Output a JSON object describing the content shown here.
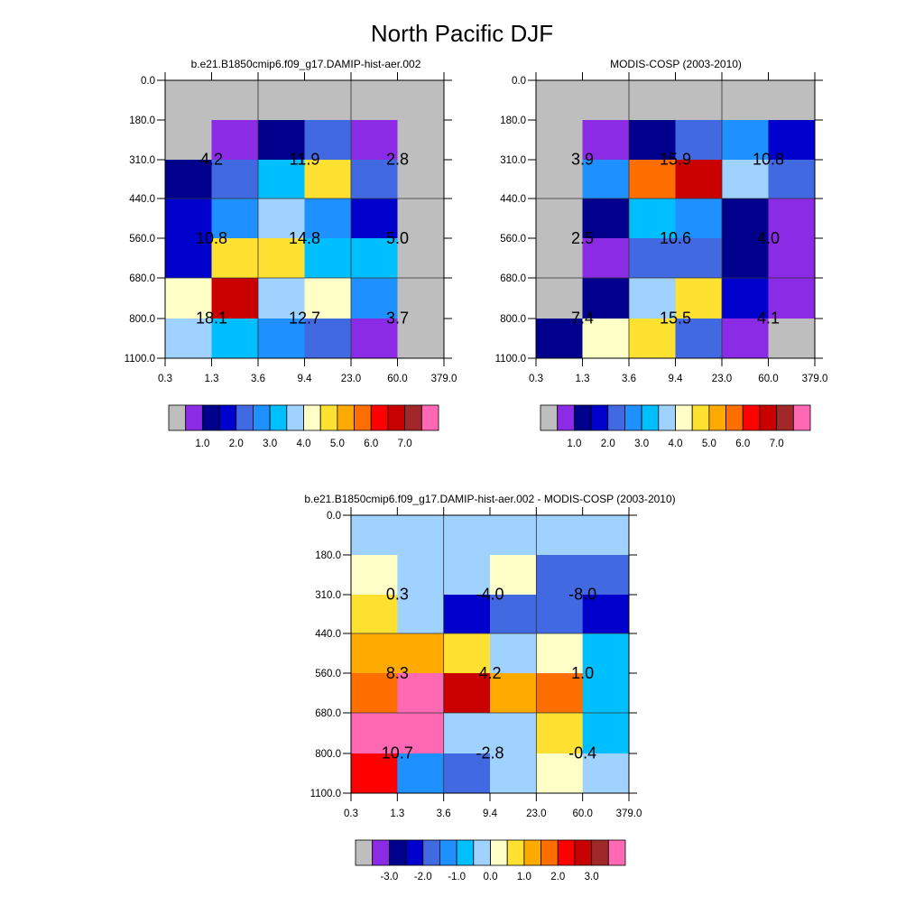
{
  "title": "North Pacific DJF",
  "palette": {
    "bg": "#ffffff",
    "missing": "#bebebe",
    "cells": [
      "#8c2be6",
      "#00008c",
      "#0000cd",
      "#4169e1",
      "#1e90ff",
      "#00bfff",
      "#a0d2ff",
      "#ffffc8",
      "#ffe132",
      "#ffaa00",
      "#ff6e00",
      "#ff0000",
      "#c80000",
      "#a02828",
      "#ff69b4"
    ],
    "colorbar_swatches": [
      "#bebebe",
      "#8c2be6",
      "#00008c",
      "#0000cd",
      "#4169e1",
      "#1e90ff",
      "#00bfff",
      "#a0d2ff",
      "#ffffc8",
      "#ffe132",
      "#ffaa00",
      "#ff6e00",
      "#ff0000",
      "#c80000",
      "#a02828",
      "#ff69b4"
    ]
  },
  "chart_data": [
    {
      "type": "heatmap",
      "title": "b.e21.B1850cmip6.f09_g17.DAMIP-hist-aer.002",
      "x_ticks": [
        "0.3",
        "1.3",
        "3.6",
        "9.4",
        "23.0",
        "60.0",
        "379.0"
      ],
      "y_ticks": [
        "0.0",
        "180.0",
        "310.0",
        "440.0",
        "560.0",
        "680.0",
        "800.0",
        "1100.0"
      ],
      "cell_color_index": [
        [
          -1,
          -1,
          -1,
          -1,
          -1,
          -1
        ],
        [
          -1,
          0,
          1,
          3,
          0,
          -1
        ],
        [
          1,
          3,
          5,
          8,
          3,
          -1
        ],
        [
          2,
          4,
          6,
          4,
          2,
          -1
        ],
        [
          2,
          8,
          8,
          5,
          5,
          -1
        ],
        [
          7,
          12,
          6,
          7,
          4,
          -1
        ],
        [
          6,
          5,
          4,
          3,
          0,
          -1
        ]
      ],
      "block_labels": [
        [
          "4.2",
          "11.9",
          "2.8"
        ],
        [
          "10.8",
          "14.8",
          "5.0"
        ],
        [
          "18.1",
          "12.7",
          "3.7"
        ]
      ],
      "colorbar": {
        "labels": [
          "1.0",
          "2.0",
          "3.0",
          "4.0",
          "5.0",
          "6.0",
          "7.0"
        ]
      }
    },
    {
      "type": "heatmap",
      "title": "MODIS-COSP (2003-2010)",
      "x_ticks": [
        "0.3",
        "1.3",
        "3.6",
        "9.4",
        "23.0",
        "60.0",
        "379.0"
      ],
      "y_ticks": [
        "0.0",
        "180.0",
        "310.0",
        "440.0",
        "560.0",
        "680.0",
        "800.0",
        "1100.0"
      ],
      "cell_color_index": [
        [
          -1,
          -1,
          -1,
          -1,
          -1,
          -1
        ],
        [
          -1,
          0,
          1,
          3,
          4,
          2
        ],
        [
          -1,
          4,
          10,
          12,
          6,
          3
        ],
        [
          -1,
          1,
          5,
          4,
          1,
          0
        ],
        [
          -1,
          0,
          3,
          3,
          1,
          0
        ],
        [
          -1,
          1,
          6,
          8,
          2,
          0
        ],
        [
          1,
          7,
          8,
          3,
          0,
          -1
        ]
      ],
      "block_labels": [
        [
          "3.9",
          "15.9",
          "10.8"
        ],
        [
          "2.5",
          "10.6",
          "4.0"
        ],
        [
          "7.4",
          "15.5",
          "4.1"
        ]
      ],
      "colorbar": {
        "labels": [
          "1.0",
          "2.0",
          "3.0",
          "4.0",
          "5.0",
          "6.0",
          "7.0"
        ]
      }
    },
    {
      "type": "heatmap",
      "title": "b.e21.B1850cmip6.f09_g17.DAMIP-hist-aer.002 - MODIS-COSP (2003-2010)",
      "x_ticks": [
        "0.3",
        "1.3",
        "3.6",
        "9.4",
        "23.0",
        "60.0",
        "379.0"
      ],
      "y_ticks": [
        "0.0",
        "180.0",
        "310.0",
        "440.0",
        "560.0",
        "680.0",
        "800.0",
        "1100.0"
      ],
      "cell_color_index": [
        [
          6,
          6,
          6,
          6,
          6,
          6
        ],
        [
          7,
          6,
          6,
          7,
          3,
          3
        ],
        [
          8,
          6,
          2,
          3,
          3,
          2
        ],
        [
          9,
          9,
          8,
          6,
          7,
          5
        ],
        [
          10,
          14,
          12,
          9,
          10,
          5
        ],
        [
          14,
          14,
          6,
          6,
          8,
          5
        ],
        [
          11,
          4,
          3,
          6,
          7,
          6
        ]
      ],
      "block_labels": [
        [
          "0.3",
          "-4.0",
          "-8.0"
        ],
        [
          "8.3",
          "4.2",
          "1.0"
        ],
        [
          "10.7",
          "-2.8",
          "-0.4"
        ]
      ],
      "colorbar": {
        "labels": [
          "-3.0",
          "-2.0",
          "-1.0",
          "0.0",
          "1.0",
          "2.0",
          "3.0"
        ]
      }
    }
  ]
}
